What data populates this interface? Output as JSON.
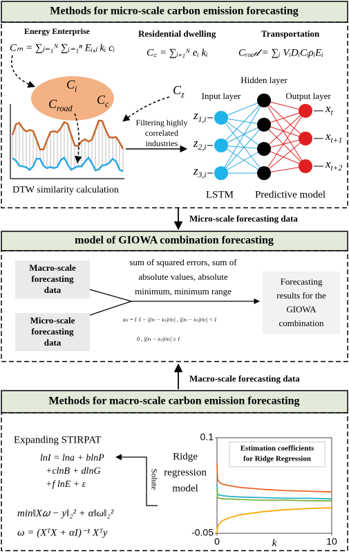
{
  "micro": {
    "title": "Methods for micro-scale carbon emission forecasting",
    "energy_label": "Energy Enterprise",
    "energy_formula": "Cₘ = ∑ⱼ₌₁ᴺ ∑ᵢ₌₁ⁿ Eᵢ,ⱼ kᵢ cᵢ",
    "residential_label": "Residential dwelling",
    "residential_formula": "C꜀ = ∑ᵢ₌₁ᴺ eᵢ kᵢ",
    "transport_label": "Transportation",
    "transport_formula": "Cᵣₒₐ𝒹 = ∑ᵢ VᵢDᵢCᵢρᵢEᵢ",
    "bubble": [
      {
        "base": "C",
        "sub": "i"
      },
      {
        "base": "C",
        "sub": "road"
      },
      {
        "base": "C",
        "sub": "c"
      }
    ],
    "cz": {
      "base": "C",
      "sub": "z"
    },
    "dtw": "DTW similarity calculation",
    "filter": [
      "Filtering highly",
      "correlated",
      "industries"
    ],
    "hidden": "Hidden layer",
    "input": "Input layer",
    "output": "Output layer",
    "inputs": [
      {
        "base": "z",
        "sub": "1,i"
      },
      {
        "base": "z",
        "sub": "2,i"
      },
      {
        "base": "z",
        "sub": "3,i"
      }
    ],
    "outputs": [
      {
        "base": "x",
        "sub": "t"
      },
      {
        "base": "x",
        "sub": "t+1"
      },
      {
        "base": "x",
        "sub": "t+2"
      }
    ],
    "lstm": "LSTM",
    "predictive": "Predictive model"
  },
  "micro_arrow": "Micro-scale forecasting data",
  "giowa": {
    "title": "model of GIOWA combination forecasting",
    "macro_box": [
      "Macro-scale",
      "forecasting",
      "data"
    ],
    "micro_box": [
      "Micro-scale",
      "forecasting",
      "data"
    ],
    "criteria": [
      "sum of squared errors, sum of",
      "absolute values, absolute",
      "minimum, minimum range"
    ],
    "formula": [
      "aᵢₜ = { 1 − |(xₜ − xᵢₜ)/xₜ| ,   |(xₜ − xᵢₜ)/xₜ| < 1",
      "0 ,   |(xₜ − xᵢₜ)/xₜ| ≥ 1"
    ],
    "result": [
      "Forecasting",
      "results for the",
      "GIOWA",
      "combination"
    ]
  },
  "macro_arrow": "Macro-scale forecasting data",
  "macro": {
    "title": "Methods for macro-scale carbon emission forecasting",
    "stirpat": "Expanding STIRPAT",
    "equations": [
      "lnI = lna + blnP",
      "+clnB + dlnG",
      "+f lnE + ε"
    ],
    "min_eq": "min‖X𝜔 − y‖₂² + α‖ω‖₂²",
    "omega_eq": "ω = (XᵀX + αI)⁻¹ Xᵀy",
    "solute": "Solute",
    "ridge": [
      "Ridge",
      "regression",
      "model"
    ]
  },
  "chart_data": {
    "type": "line",
    "title": [
      "Estimation coefficients",
      "for Ridge Regression"
    ],
    "x_label": "k",
    "xlim": [
      0,
      10
    ],
    "xticks": [
      0,
      10
    ],
    "ylim": [
      -0.05,
      0.1
    ],
    "yticks": [
      0.1,
      -0.05
    ],
    "x": [
      0,
      0.05,
      0.2,
      0.5,
      1,
      2,
      4,
      6,
      8,
      10
    ],
    "series": [
      {
        "color": "#e8632a",
        "values": [
          0.06,
          0.035,
          0.03,
          0.027,
          0.025,
          0.022,
          0.019,
          0.017,
          0.016,
          0.015
        ]
      },
      {
        "color": "#2ab0c5",
        "values": [
          0.025,
          0.012,
          0.01,
          0.009,
          0.008,
          0.007,
          0.006,
          0.005,
          0.005,
          0.004
        ]
      },
      {
        "color": "#7cb342",
        "values": [
          0.02,
          0.006,
          0.005,
          0.004,
          0.004,
          0.003,
          0.002,
          0.002,
          0.001,
          0.001
        ]
      },
      {
        "color": "#f2a900",
        "values": [
          -0.05,
          -0.04,
          -0.035,
          -0.03,
          -0.026,
          -0.021,
          -0.016,
          -0.013,
          -0.011,
          -0.01
        ]
      }
    ]
  }
}
